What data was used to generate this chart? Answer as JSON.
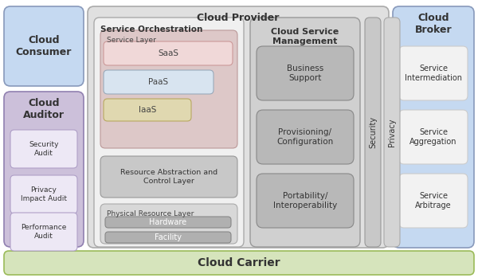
{
  "background": "#ffffff",
  "cloud_provider": {
    "label": "Cloud Provider",
    "color": "#e0e0e0",
    "border": "#aaaaaa"
  },
  "cloud_consumer": {
    "label": "Cloud\nConsumer",
    "color": "#c5d9f1",
    "border": "#8899bb"
  },
  "cloud_auditor": {
    "label": "Cloud\nAuditor",
    "color": "#ccc0da",
    "border": "#9080b0"
  },
  "cloud_broker": {
    "label": "Cloud\nBroker",
    "color": "#c5d9f1",
    "border": "#8899bb"
  },
  "cloud_carrier": {
    "label": "Cloud Carrier",
    "color": "#d6e4bc",
    "border": "#9bbb59"
  },
  "service_orchestration": {
    "label": "Service Orchestration",
    "color": "#f0f0f0",
    "border": "#aaaaaa"
  },
  "service_layer_bg": {
    "label": "Service Layer",
    "color": "#ddc8c8",
    "border": "#bb9999"
  },
  "saas": {
    "label": "SaaS",
    "color": "#f0d8d8",
    "border": "#cc9999"
  },
  "paas": {
    "label": "PaaS",
    "color": "#d8e4f0",
    "border": "#99aabb"
  },
  "iaas": {
    "label": "IaaS",
    "color": "#e0d8b0",
    "border": "#b8a860"
  },
  "resource_abstraction": {
    "label": "Resource Abstraction and\nControl Layer",
    "color": "#c8c8c8",
    "border": "#999999"
  },
  "physical_resource": {
    "label": "Physical Resource Layer",
    "color": "#d8d8d8",
    "border": "#aaaaaa"
  },
  "hardware": {
    "label": "Hardware",
    "color": "#b0b0b0",
    "border": "#888888"
  },
  "facility": {
    "label": "Facility",
    "color": "#b0b0b0",
    "border": "#888888"
  },
  "cloud_service_mgmt": {
    "label": "Cloud Service\nManagement",
    "color": "#d0d0d0",
    "border": "#999999"
  },
  "business_support": {
    "label": "Business\nSupport",
    "color": "#b8b8b8",
    "border": "#888888"
  },
  "provisioning": {
    "label": "Provisioning/\nConfiguration",
    "color": "#b8b8b8",
    "border": "#888888"
  },
  "portability": {
    "label": "Portability/\nInteroperability",
    "color": "#b8b8b8",
    "border": "#888888"
  },
  "security": {
    "label": "Security",
    "color": "#c8c8c8",
    "border": "#999999"
  },
  "privacy": {
    "label": "Privacy",
    "color": "#d4d4d4",
    "border": "#aaaaaa"
  },
  "audit_boxes": [
    {
      "label": "Security\nAudit",
      "color": "#ede8f5",
      "border": "#b0a0c8"
    },
    {
      "label": "Privacy\nImpact Audit",
      "color": "#ede8f5",
      "border": "#b0a0c8"
    },
    {
      "label": "Performance\nAudit",
      "color": "#ede8f5",
      "border": "#b0a0c8"
    }
  ],
  "broker_boxes": [
    {
      "label": "Service\nIntermediation",
      "color": "#f2f2f2",
      "border": "#cccccc"
    },
    {
      "label": "Service\nAggregation",
      "color": "#f2f2f2",
      "border": "#cccccc"
    },
    {
      "label": "Service\nArbitrage",
      "color": "#f2f2f2",
      "border": "#cccccc"
    }
  ]
}
